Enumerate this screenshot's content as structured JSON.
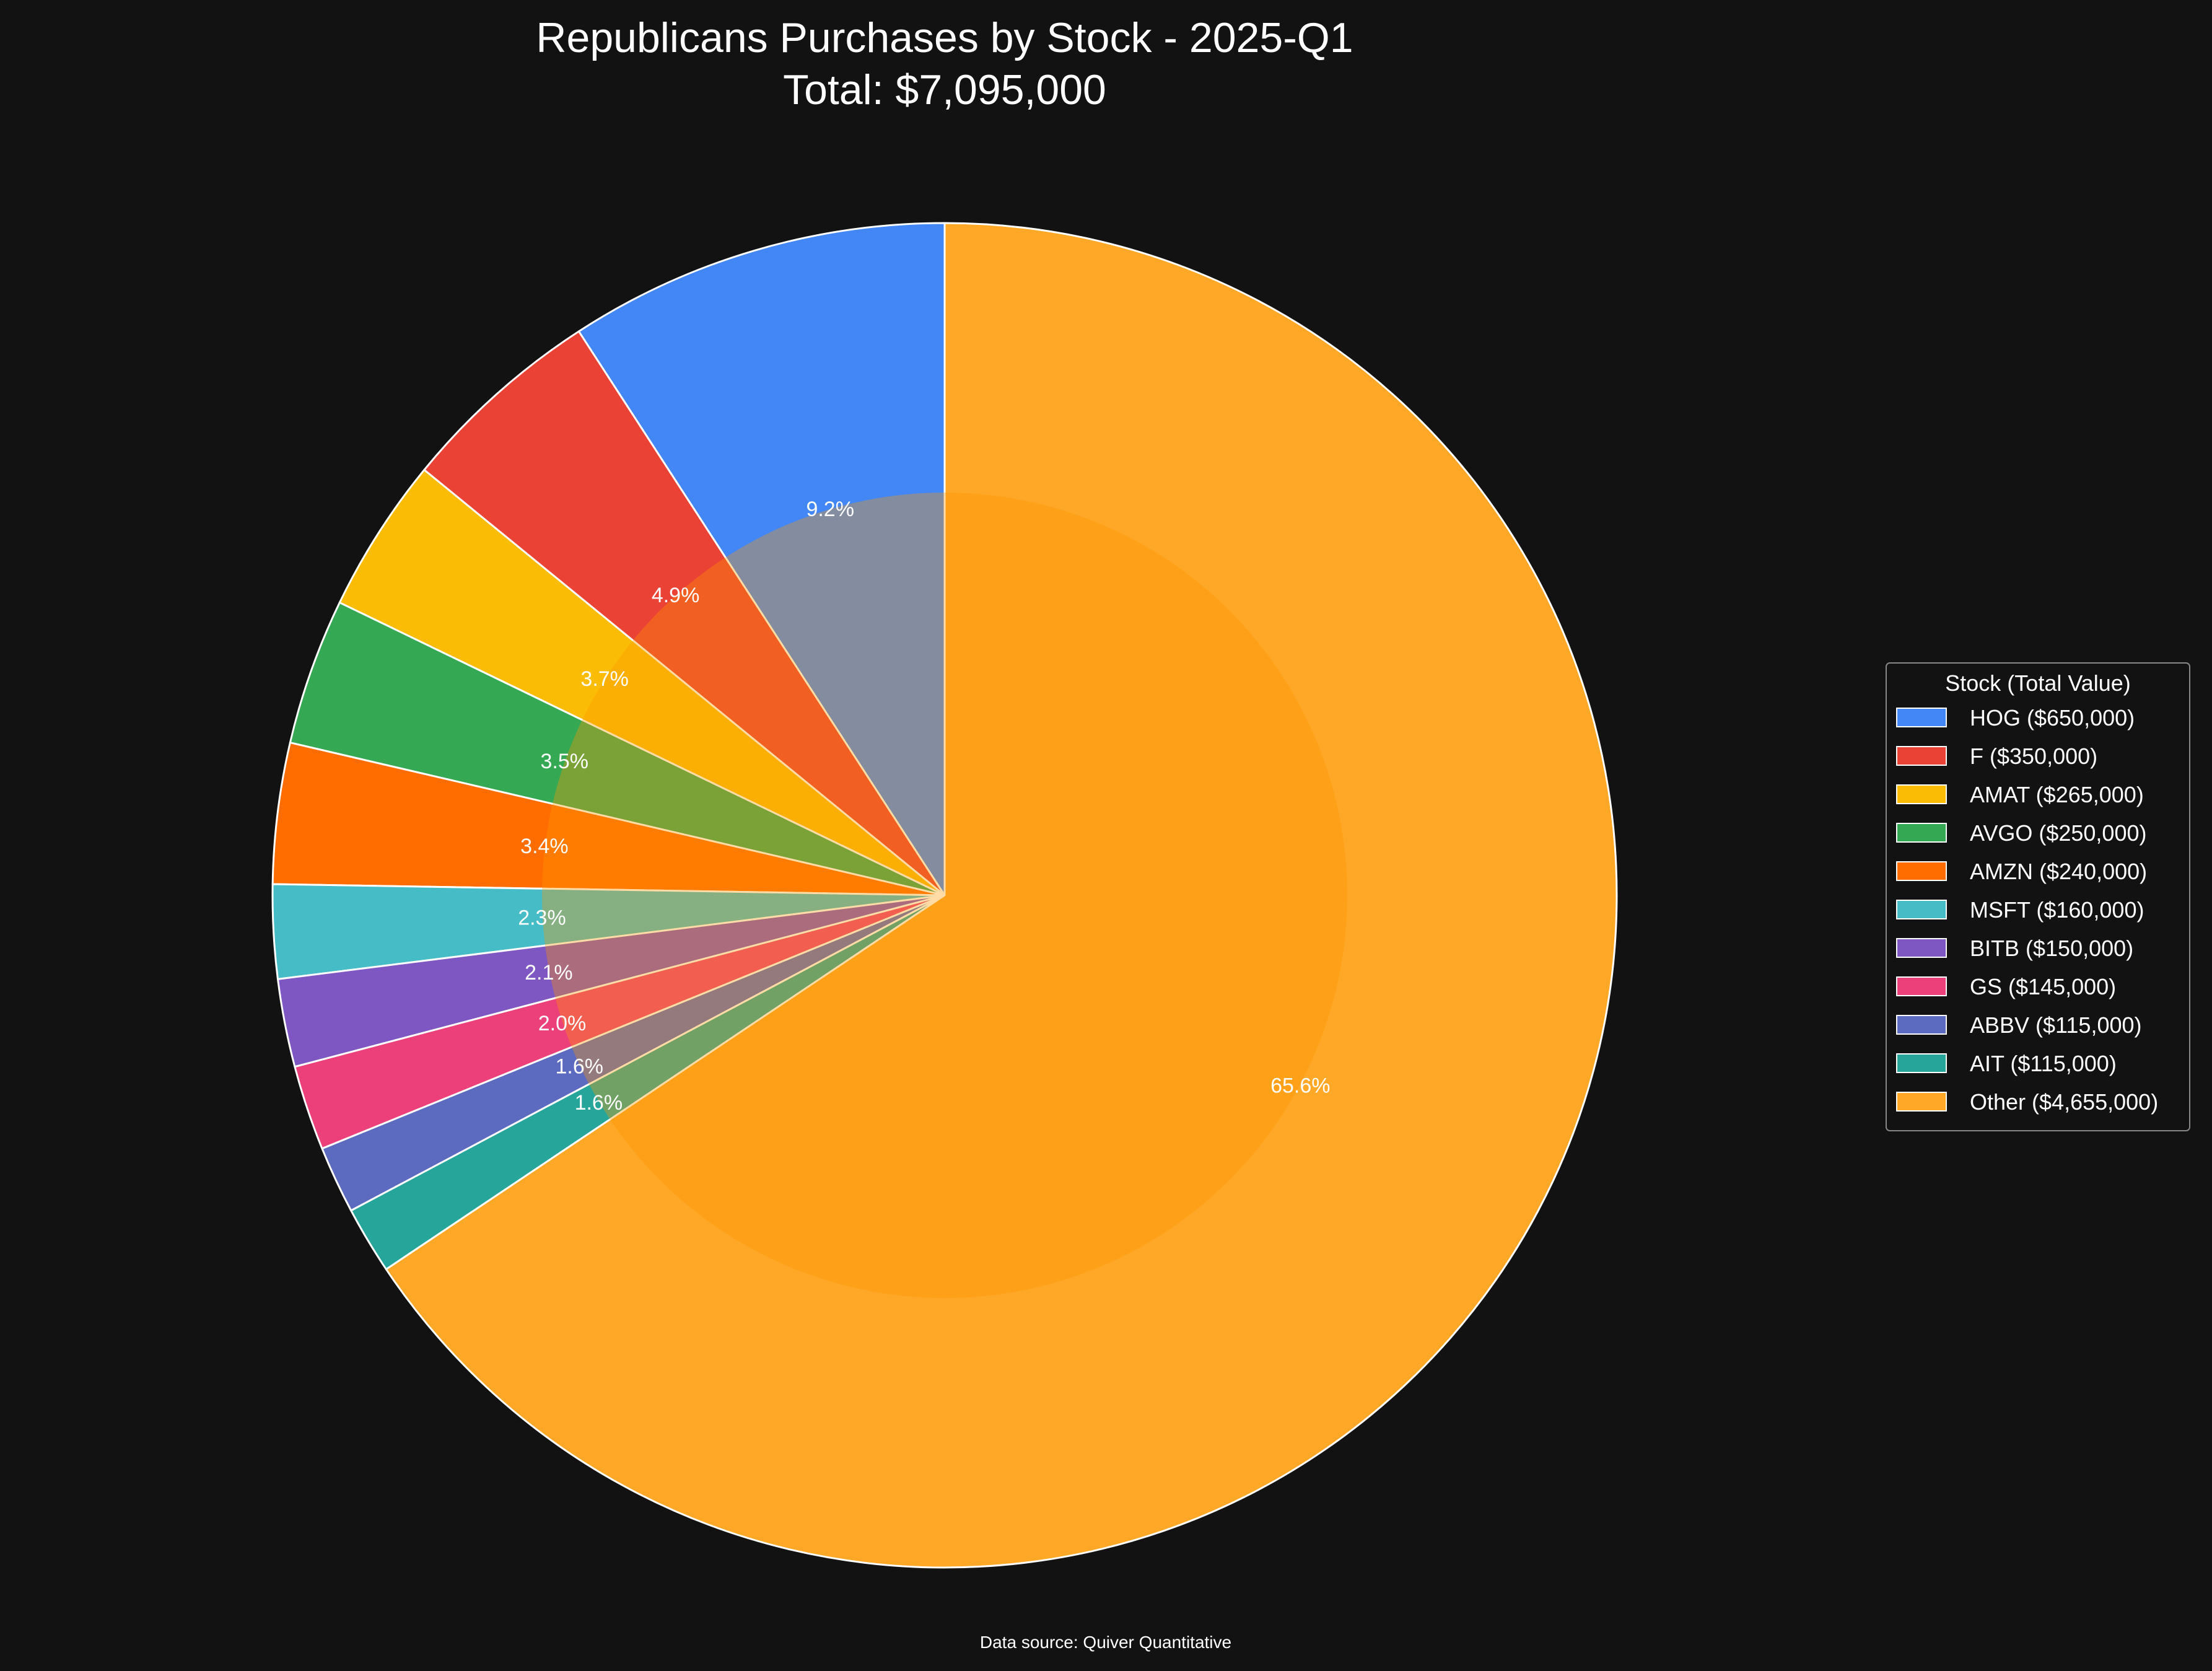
{
  "chart_data": {
    "type": "pie",
    "title": "Republicans Purchases by Stock - 2025-Q1",
    "subtitle": "Total: $7,095,000",
    "legend_title": "Stock (Total Value)",
    "legend_placement": "right",
    "source_note": "Data source: Quiver Quantitative",
    "grid": false,
    "slices": [
      {
        "label": "HOG",
        "value": 650000,
        "legend_label": "HOG ($650,000)",
        "pct_label": "9.2%",
        "color": "#4287f5"
      },
      {
        "label": "F",
        "value": 350000,
        "legend_label": "F ($350,000)",
        "pct_label": "4.9%",
        "color": "#ea4335"
      },
      {
        "label": "AMAT",
        "value": 265000,
        "legend_label": "AMAT ($265,000)",
        "pct_label": "3.7%",
        "color": "#fbbc05"
      },
      {
        "label": "AVGO",
        "value": 250000,
        "legend_label": "AVGO ($250,000)",
        "pct_label": "3.5%",
        "color": "#34a853"
      },
      {
        "label": "AMZN",
        "value": 240000,
        "legend_label": "AMZN ($240,000)",
        "pct_label": "3.4%",
        "color": "#ff6d00"
      },
      {
        "label": "MSFT",
        "value": 160000,
        "legend_label": "MSFT ($160,000)",
        "pct_label": "2.3%",
        "color": "#46bdc6"
      },
      {
        "label": "BITB",
        "value": 150000,
        "legend_label": "BITB ($150,000)",
        "pct_label": "2.1%",
        "color": "#7e57c2"
      },
      {
        "label": "GS",
        "value": 145000,
        "legend_label": "GS ($145,000)",
        "pct_label": "2.0%",
        "color": "#ec407a"
      },
      {
        "label": "ABBV",
        "value": 115000,
        "legend_label": "ABBV ($115,000)",
        "pct_label": "1.6%",
        "color": "#5c6bc0"
      },
      {
        "label": "AIT",
        "value": 115000,
        "legend_label": "AIT ($115,000)",
        "pct_label": "1.6%",
        "color": "#26a69a"
      },
      {
        "label": "Other",
        "value": 4655000,
        "legend_label": "Other ($4,655,000)",
        "pct_label": "65.6%",
        "color": "#ffa726"
      }
    ],
    "center_overlay_color": "#ff9800"
  },
  "colors": {
    "background": "#121212",
    "slice_edge": "#ffffff",
    "legend_background": "#121212",
    "legend_border": "#888888",
    "text": "#ffffff"
  }
}
